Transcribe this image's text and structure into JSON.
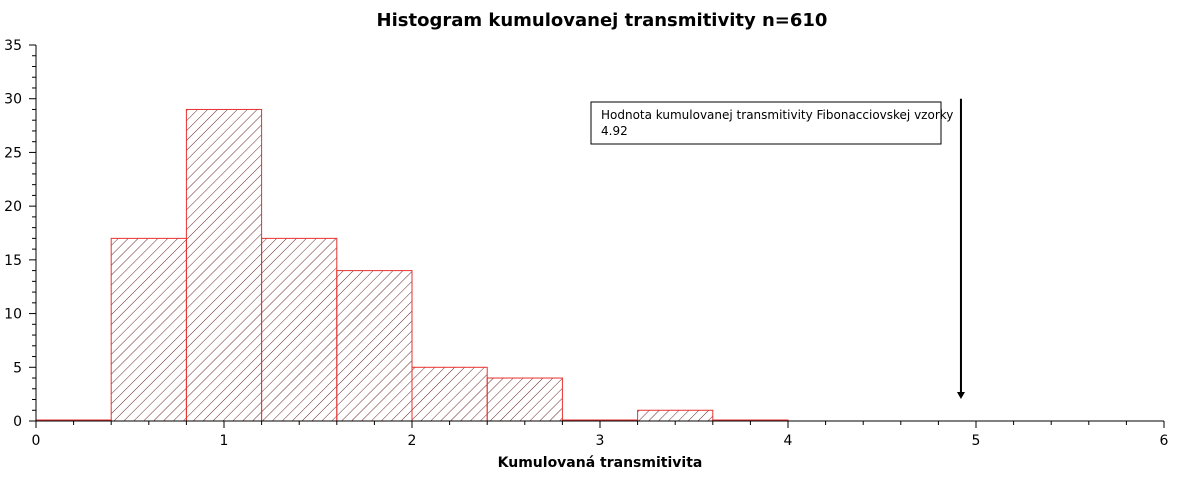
{
  "chart_data": {
    "type": "bar",
    "title": "Histogram kumulovanej transmitivity n=610",
    "xlabel": "Kumulovaná transmitivita",
    "ylabel": "",
    "xlim": [
      0,
      6
    ],
    "ylim": [
      0,
      35
    ],
    "bin_width": 0.4,
    "bins": [
      {
        "start": 0.0,
        "end": 0.4,
        "count": 0
      },
      {
        "start": 0.4,
        "end": 0.8,
        "count": 17
      },
      {
        "start": 0.8,
        "end": 1.2,
        "count": 29
      },
      {
        "start": 1.2,
        "end": 1.6,
        "count": 17
      },
      {
        "start": 1.6,
        "end": 2.0,
        "count": 14
      },
      {
        "start": 2.0,
        "end": 2.4,
        "count": 5
      },
      {
        "start": 2.4,
        "end": 2.8,
        "count": 4
      },
      {
        "start": 2.8,
        "end": 3.2,
        "count": 0
      },
      {
        "start": 3.2,
        "end": 3.6,
        "count": 1
      },
      {
        "start": 3.6,
        "end": 4.0,
        "count": 0
      }
    ],
    "x_ticks": [
      "0",
      "1",
      "2",
      "3",
      "4",
      "5",
      "6"
    ],
    "y_ticks": [
      "0",
      "5",
      "10",
      "15",
      "20",
      "25",
      "30",
      "35"
    ],
    "bar_color": "#e8322f",
    "bar_fill": "diagonal-hatch",
    "grid": false,
    "annotation": {
      "line1": "Hodnota kumulovanej transmitivity Fibonacciovskej vzorky",
      "line2": "4.92",
      "arrow_x": 4.92,
      "arrow_from_y": 30,
      "arrow_to_y": 2
    }
  }
}
